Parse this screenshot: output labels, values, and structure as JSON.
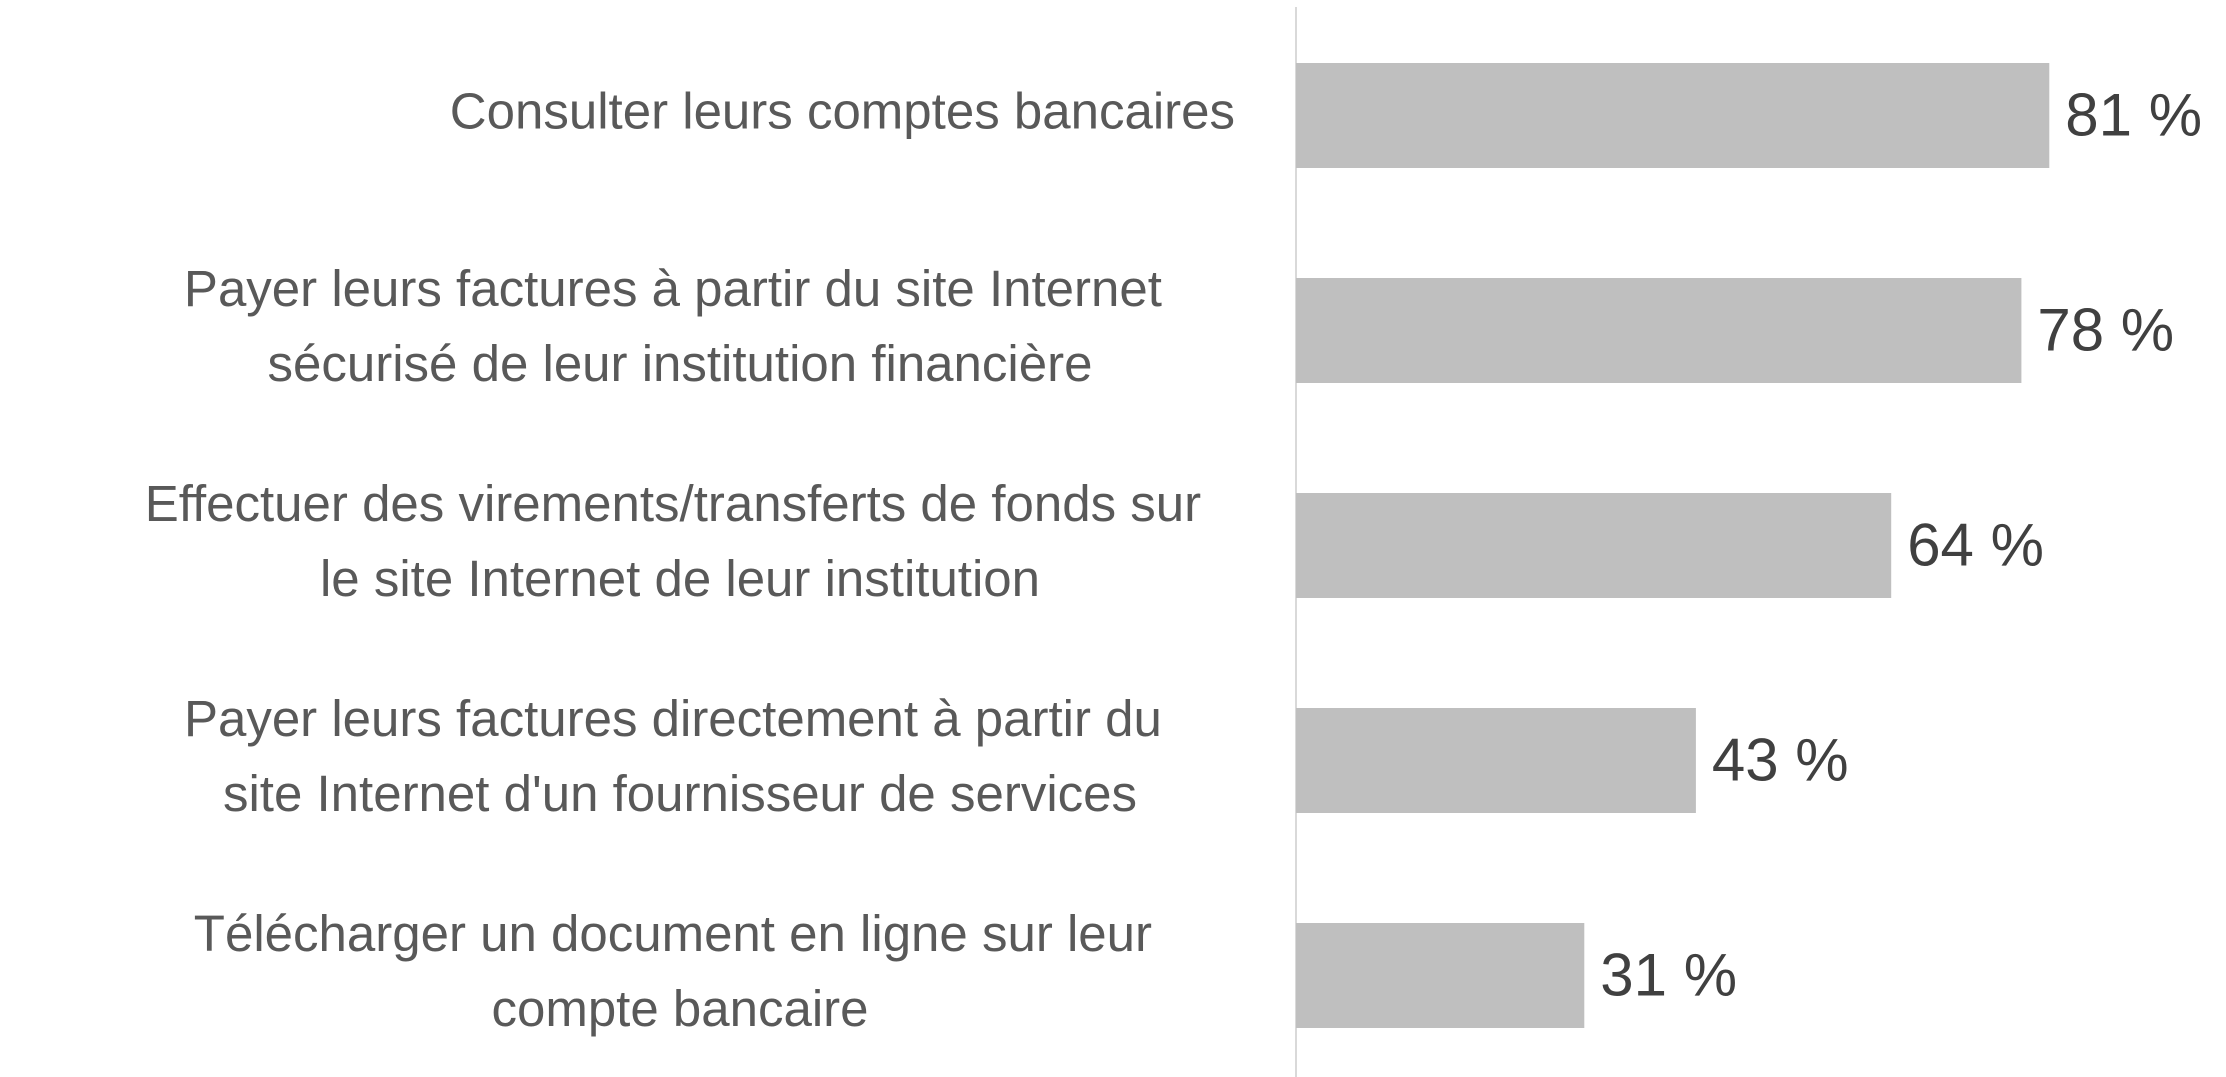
{
  "chart_data": {
    "type": "hbar",
    "categories": [
      "Consulter leurs comptes bancaires",
      "Payer leurs factures à partir du site Internet\nsécurisé de leur institution financière",
      "Effectuer des virements/transferts de fonds sur\nle site Internet de leur institution",
      "Payer leurs factures directement à partir du\nsite Internet d'un fournisseur de services",
      "Télécharger un document en ligne sur leur\ncompte bancaire"
    ],
    "values": [
      81,
      78,
      64,
      43,
      31
    ],
    "value_labels": [
      "81 %",
      "78 %",
      "64 %",
      "43 %",
      "31 %"
    ],
    "color": "#bfbfbf",
    "xlim": [
      0,
      100
    ]
  }
}
